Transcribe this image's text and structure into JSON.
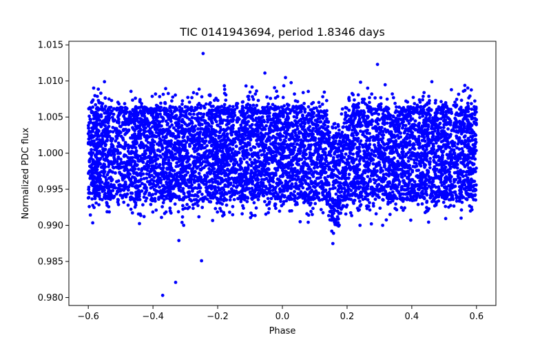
{
  "chart_data": {
    "type": "scatter",
    "title": "TIC 0141943694, period 1.8346 days",
    "xlabel": "Phase",
    "ylabel": "Normalized PDC flux",
    "xlim": [
      -0.66,
      0.66
    ],
    "ylim": [
      0.9789,
      1.0155
    ],
    "xticks": [
      -0.6,
      -0.4,
      -0.2,
      0.0,
      0.2,
      0.4,
      0.6
    ],
    "xtick_labels": [
      "−0.6",
      "−0.4",
      "−0.2",
      "0.0",
      "0.2",
      "0.4",
      "0.6"
    ],
    "yticks": [
      0.98,
      0.985,
      0.99,
      0.995,
      1.0,
      1.005,
      1.01,
      1.015
    ],
    "ytick_labels": [
      "0.980",
      "0.985",
      "0.990",
      "0.995",
      "1.000",
      "1.005",
      "1.010",
      "1.015"
    ],
    "grid": false,
    "marker_color": "#0000ff",
    "phase_range": [
      -0.6,
      0.6
    ],
    "baseline_flux": 1.0,
    "scatter_band": [
      0.9935,
      1.0065
    ],
    "transit": {
      "center_phase": 0.165,
      "depth": 0.0035,
      "half_width": 0.03
    },
    "outliers": [
      {
        "x": -0.245,
        "y": 1.0138
      },
      {
        "x": -0.054,
        "y": 1.0111
      },
      {
        "x": 0.294,
        "y": 1.0123
      },
      {
        "x": -0.55,
        "y": 1.0099
      },
      {
        "x": 0.462,
        "y": 1.0099
      },
      {
        "x": -0.37,
        "y": 0.9803
      },
      {
        "x": -0.33,
        "y": 0.9821
      },
      {
        "x": -0.25,
        "y": 0.9851
      },
      {
        "x": -0.32,
        "y": 0.9879
      },
      {
        "x": -0.305,
        "y": 0.99
      },
      {
        "x": 0.055,
        "y": 0.9905
      },
      {
        "x": 0.24,
        "y": 0.99
      },
      {
        "x": 0.275,
        "y": 0.9902
      },
      {
        "x": 0.31,
        "y": 0.99
      },
      {
        "x": 0.158,
        "y": 0.9889
      }
    ]
  }
}
